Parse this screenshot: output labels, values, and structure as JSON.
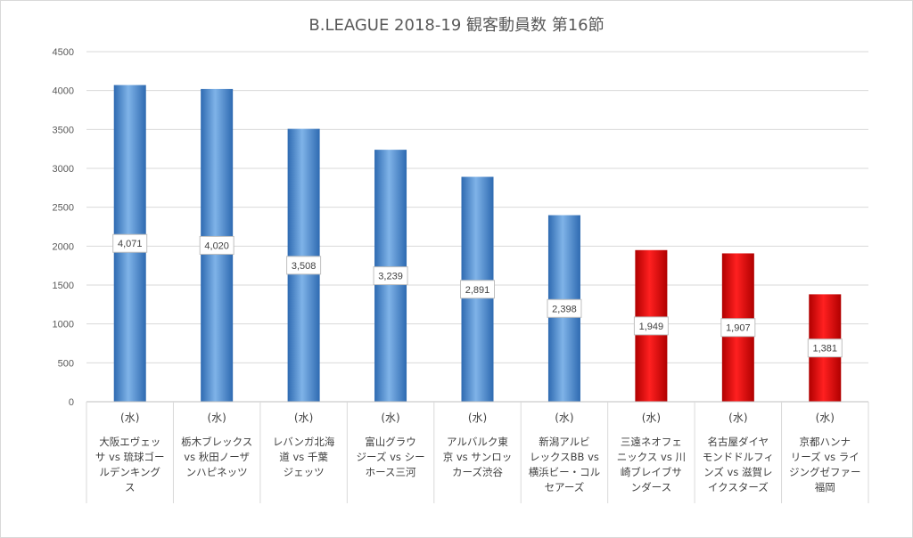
{
  "chart_data": {
    "type": "bar",
    "title": "B.LEAGUE 2018-19 観客動員数 第16節",
    "xlabel": "",
    "ylabel": "",
    "ylim": [
      0,
      4500
    ],
    "yticks": [
      0,
      500,
      1000,
      1500,
      2000,
      2500,
      3000,
      3500,
      4000,
      4500
    ],
    "grid": true,
    "legend": "none",
    "day_label": "(水)",
    "categories": [
      "大阪エヴェッサ vs 琉球ゴールデンキングス",
      "栃木ブレックス vs 秋田ノーザンハピネッツ",
      "レバンガ北海道 vs 千葉ジェッツ",
      "富山グラウジーズ vs シーホース三河",
      "アルバルク東京 vs サンロッカーズ渋谷",
      "新潟アルビレックスBB vs 横浜ビー・コルセアーズ",
      "三遠ネオフェニックス vs 川崎ブレイブサンダース",
      "名古屋ダイヤモンドドルフィンズ vs 滋賀レイクスターズ",
      "京都ハンナリーズ vs ライジングゼファー福岡"
    ],
    "category_lines": [
      [
        "大阪エヴェッ",
        "サ vs 琉球ゴー",
        "ルデンキング",
        "ス"
      ],
      [
        "栃木ブレックス",
        "vs 秋田ノーザ",
        "ンハピネッツ"
      ],
      [
        "レバンガ北海",
        "道 vs 千葉",
        "ジェッツ"
      ],
      [
        "富山グラウ",
        "ジーズ vs シー",
        "ホース三河"
      ],
      [
        "アルバルク東",
        "京 vs サンロッ",
        "カーズ渋谷"
      ],
      [
        "新潟アルビ",
        "レックスBB vs",
        "横浜ビー・コル",
        "セアーズ"
      ],
      [
        "三遠ネオフェ",
        "ニックス vs 川",
        "崎ブレイブサ",
        "ンダース"
      ],
      [
        "名古屋ダイヤ",
        "モンドドルフィ",
        "ンズ vs 滋賀レ",
        "イクスターズ"
      ],
      [
        "京都ハンナ",
        "リーズ vs ライ",
        "ジングゼファー",
        "福岡"
      ]
    ],
    "values": [
      4071,
      4020,
      3508,
      3239,
      2891,
      2398,
      1949,
      1907,
      1381
    ],
    "value_labels": [
      "4,071",
      "4,020",
      "3,508",
      "3,239",
      "2,891",
      "2,398",
      "1,949",
      "1,907",
      "1,381"
    ],
    "bar_colors": [
      "blue",
      "blue",
      "blue",
      "blue",
      "blue",
      "blue",
      "red",
      "red",
      "red"
    ],
    "colors": {
      "blue": "#5b9bd5",
      "red": "#ff0000"
    }
  }
}
